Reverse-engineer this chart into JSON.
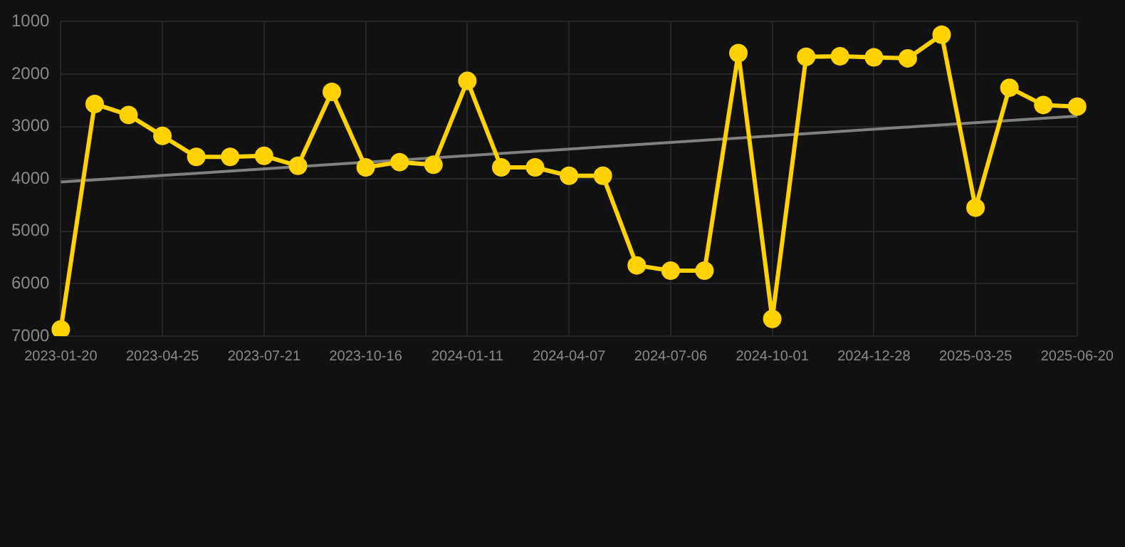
{
  "chart_data": {
    "type": "line",
    "categories": [
      "2023-01-20",
      null,
      null,
      "2023-04-25",
      null,
      null,
      "2023-07-21",
      null,
      null,
      "2023-10-16",
      null,
      null,
      "2024-01-11",
      null,
      null,
      "2024-04-07",
      null,
      null,
      "2024-07-06",
      null,
      null,
      "2024-10-01",
      null,
      null,
      "2024-12-28",
      null,
      null,
      "2025-03-25",
      null,
      null,
      "2025-06-20"
    ],
    "series": [
      {
        "color": "#ffd200",
        "marker": "circle",
        "values": [
          6870,
          2570,
          2780,
          3180,
          3580,
          3580,
          3560,
          3750,
          2340,
          3780,
          3680,
          3730,
          2130,
          3780,
          3780,
          3940,
          3940,
          5650,
          5750,
          5750,
          1600,
          6670,
          1670,
          1660,
          1680,
          1700,
          1250,
          4550,
          2260,
          2590,
          2620
        ]
      },
      {
        "type": "line",
        "color": "#808080",
        "marker": "none",
        "values": [
          4060,
          null,
          null,
          null,
          null,
          null,
          null,
          null,
          null,
          null,
          null,
          null,
          null,
          null,
          null,
          null,
          null,
          null,
          null,
          null,
          null,
          null,
          null,
          null,
          null,
          null,
          null,
          null,
          null,
          null,
          2800
        ]
      }
    ],
    "ylim": [
      7000,
      1000
    ],
    "yticks": [
      1000,
      2000,
      3000,
      4000,
      5000,
      6000,
      7000
    ],
    "grid": true,
    "legend": false
  }
}
